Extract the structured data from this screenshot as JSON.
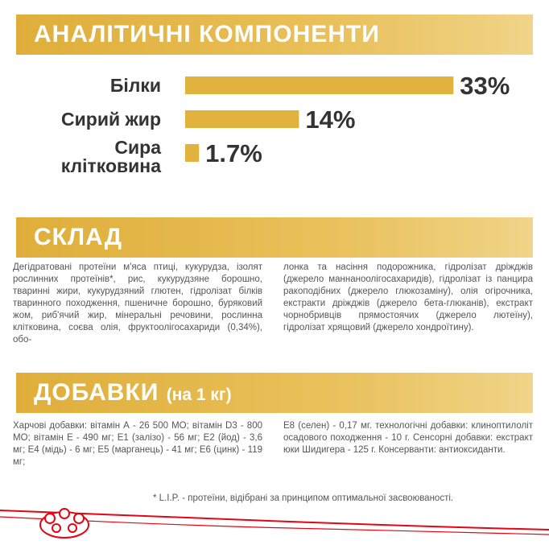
{
  "chart_data": {
    "type": "bar",
    "orientation": "horizontal",
    "title": "АНАЛІТИЧНІ КОМПОНЕНТИ",
    "categories": [
      "Білки",
      "Сирий жир",
      "Сира клітковина"
    ],
    "values": [
      33,
      14,
      1.7
    ],
    "value_labels": [
      "33%",
      "14%",
      "1.7%"
    ],
    "color": "#e2b23f"
  },
  "composition": {
    "title": "СКЛАД",
    "columns": [
      "Дегідратовані протеїни м'яса птиці, кукурудза, ізолят рослинних протеїнів*, рис, кукурудзяне борошно, тваринні жири, кукурудзяний глютен, гідролізат білків тваринного походження, пшеничне борошно, буряковий жом, риб'ячий жир, мінеральні речовини, рослинна клітковина, соєва олія, фруктоолігосахариди (0,34%), обо-",
      "лонка та насіння подорожника, гідролізат дріжджів (джерело маннаноолігосахаридів), гідролізат із панцира ракоподібних (джерело глюкозаміну), олія огірочника, екстракти дріжджів (джерело бета-глюканів), екстракт чорнобривців прямостоячих (джерело лютеїну), гідролізат хрящовий (джерело хондроїтину)."
    ]
  },
  "additives": {
    "title": "ДОБАВКИ",
    "subtitle": "(на 1 кг)",
    "columns": [
      "Харчові добавки: вітамін А - 26 500 МО; вітамін D3 - 800 МО; вітамін Е - 490 мг; Е1 (залізо) - 56 мг; Е2 (йод) - 3,6 мг; Е4 (мідь) - 6 мг; Е5 (марганець) - 41 мг; Е6 (цинк) - 119 мг;",
      "Е8 (селен) - 0,17 мг. технологічні добавки: клиноптилоліт осадового походження - 10 г. Сенсорні добавки: екстракт юки Шидигера - 125 г. Консерванти: антиоксиданти."
    ]
  },
  "footnote": "* L.I.P. - протеїни, відібрані за принципом оптимальної засвоюваності."
}
